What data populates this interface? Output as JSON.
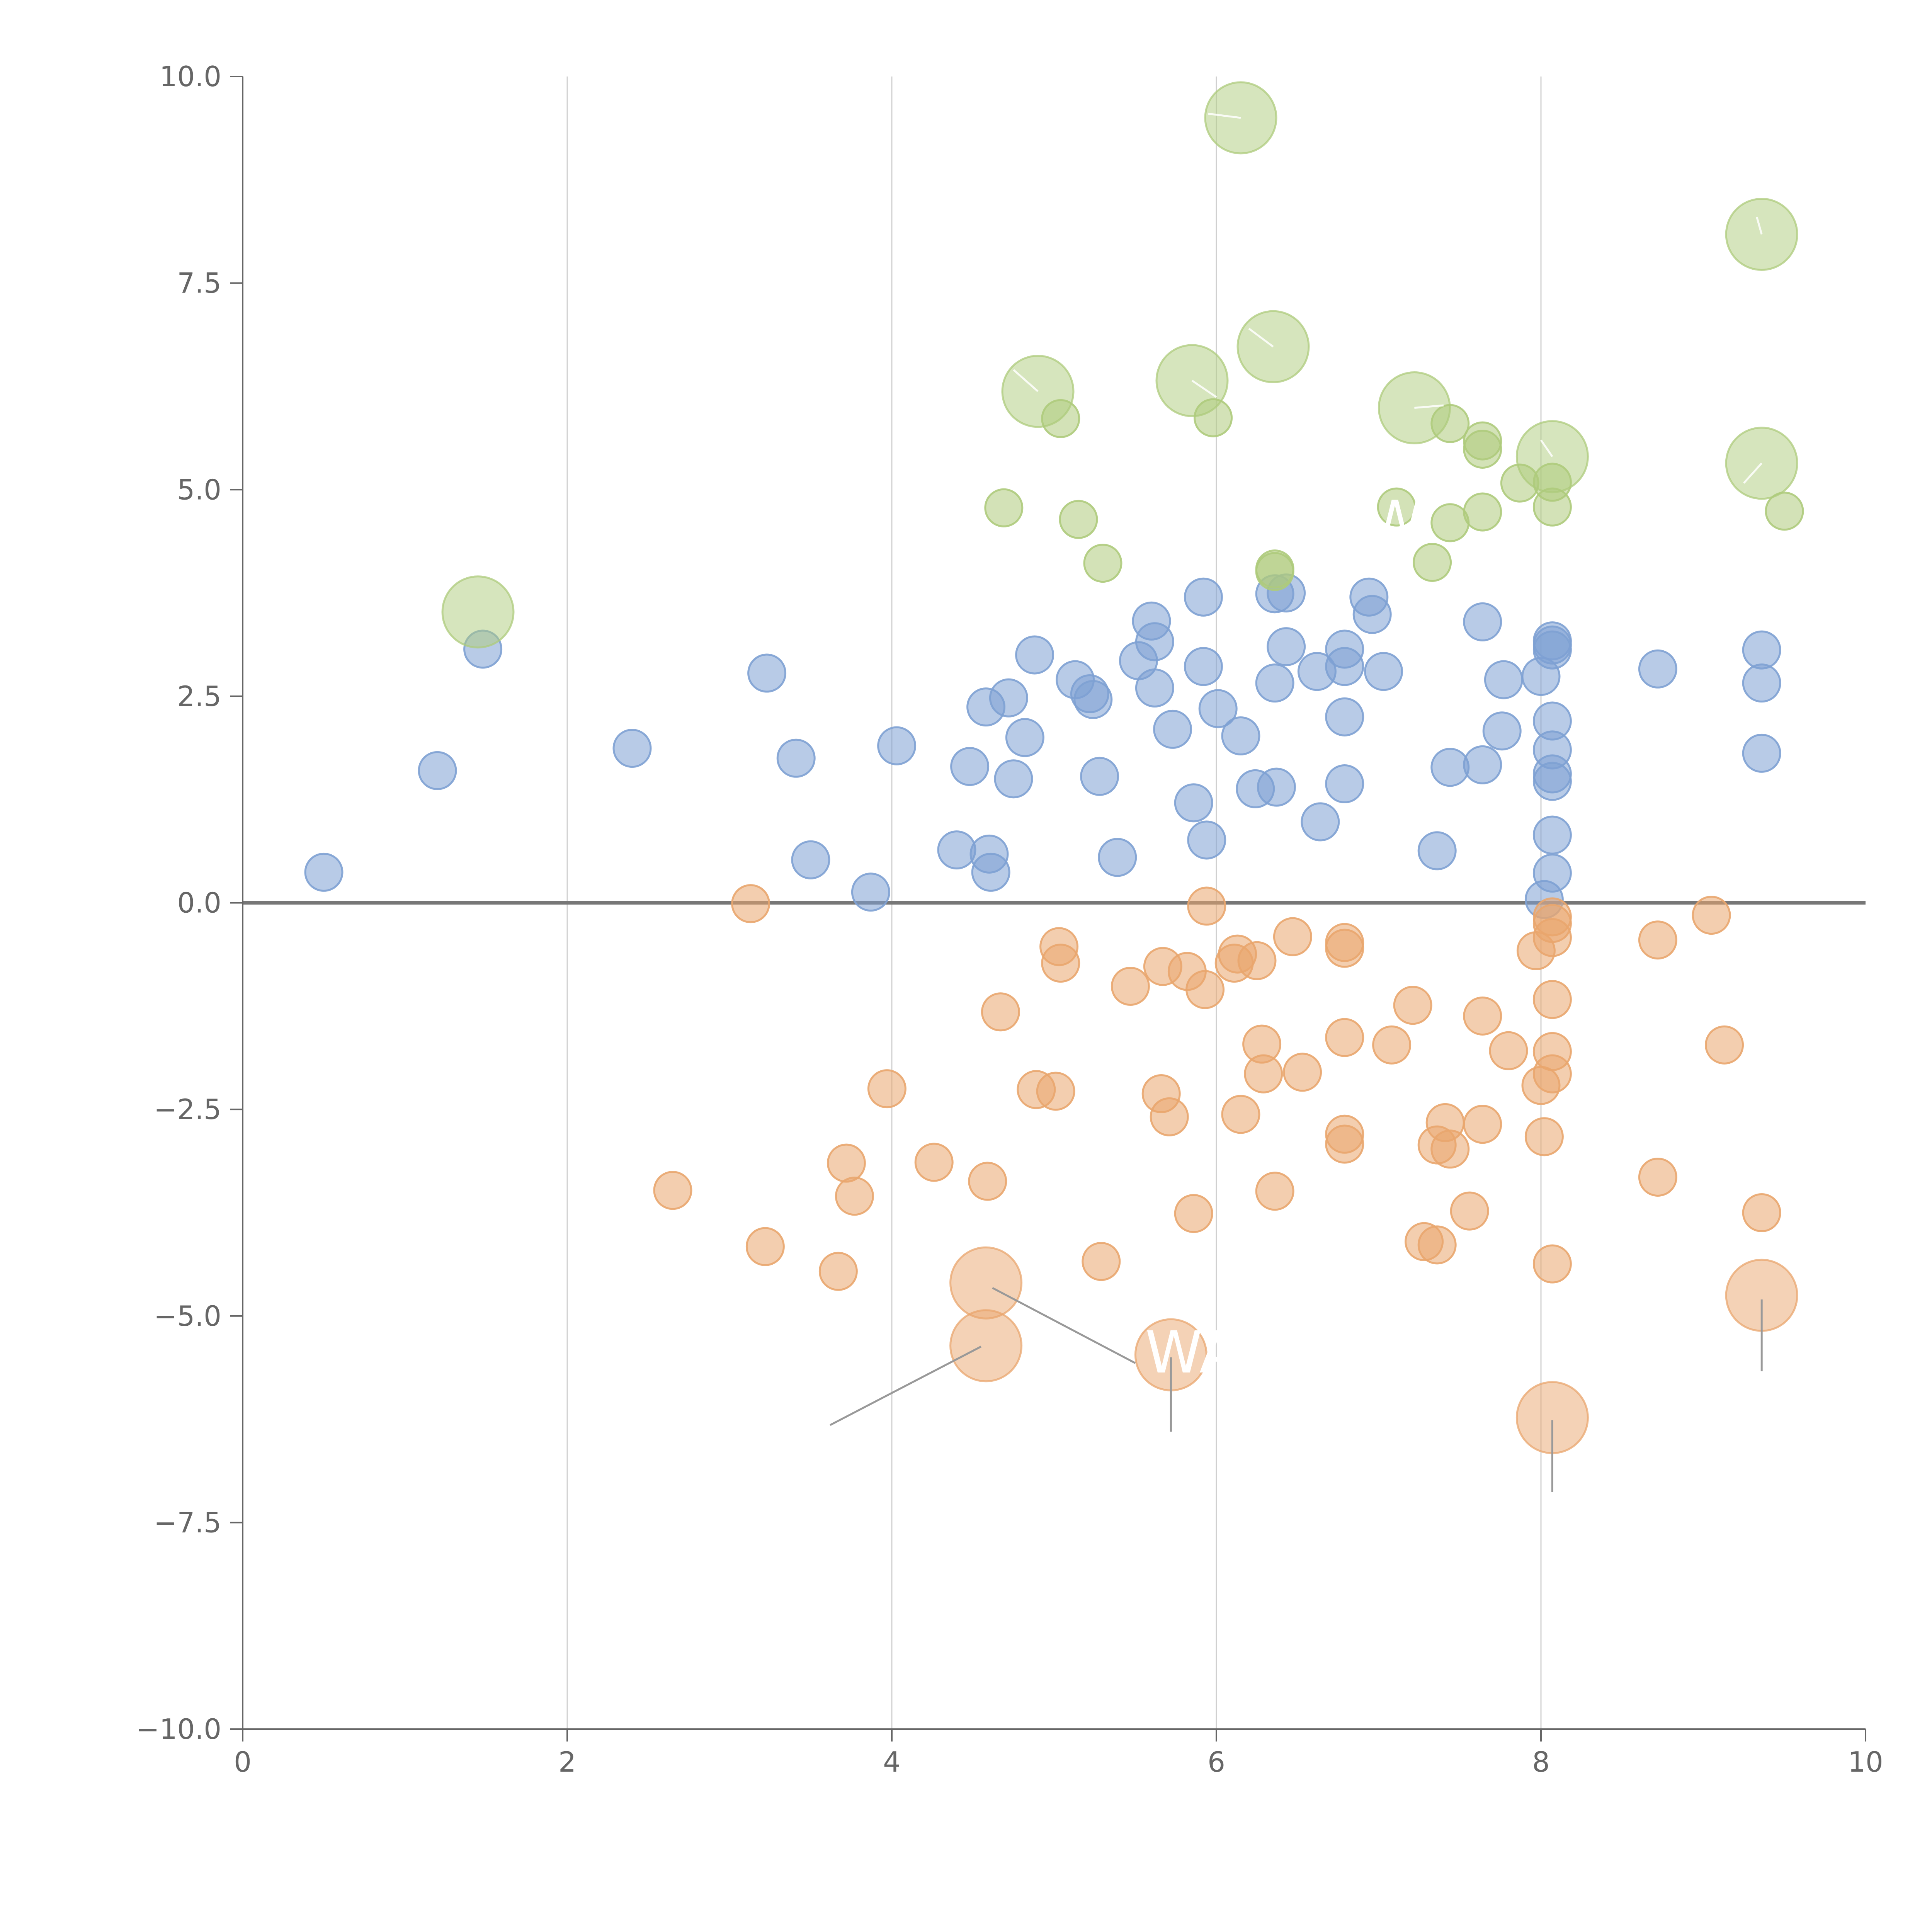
{
  "chart_data": {
    "type": "scatter",
    "title": "",
    "xlabel": "",
    "ylabel": "",
    "xlim": [
      0,
      10
    ],
    "ylim": [
      -10,
      10
    ],
    "x_ticks": [
      0,
      2,
      4,
      6,
      8,
      10
    ],
    "x_tick_labels": [
      "0",
      "2",
      "4",
      "6",
      "8",
      "10"
    ],
    "y_ticks": [
      -10,
      -7.5,
      -5,
      -2.5,
      0,
      2.5,
      5,
      7.5,
      10
    ],
    "y_tick_labels": [
      "−10.0",
      "−7.5",
      "−5.0",
      "−2.5",
      "0.0",
      "2.5",
      "5.0",
      "7.5",
      "10.0"
    ],
    "grid": {
      "vertical": true,
      "horizontal": false
    },
    "zero_line": true,
    "colors": {
      "blue": "#7ea1d3",
      "orange": "#e9a66e",
      "green": "#aecb7c",
      "axis": "#666666",
      "grid": "#d0d0d0"
    },
    "annotations": [
      {
        "text": "W",
        "x": 7.1,
        "y": 4.6,
        "color": "#ffffff"
      },
      {
        "text": "WA",
        "x": 5.85,
        "y": -5.45,
        "color": "#ffffff"
      }
    ],
    "series": [
      {
        "name": "blue",
        "color": "#7ea1d3",
        "points": [
          [
            0.5,
            0.37
          ],
          [
            1.2,
            1.6
          ],
          [
            1.48,
            3.07
          ],
          [
            2.4,
            1.87
          ],
          [
            3.23,
            2.78
          ],
          [
            3.41,
            1.75
          ],
          [
            3.5,
            0.52
          ],
          [
            3.87,
            0.13
          ],
          [
            4.03,
            1.9
          ],
          [
            4.4,
            0.64
          ],
          [
            4.48,
            1.65
          ],
          [
            4.58,
            2.37
          ],
          [
            4.6,
            0.59
          ],
          [
            4.61,
            0.37
          ],
          [
            4.72,
            2.48
          ],
          [
            4.75,
            1.5
          ],
          [
            4.82,
            2.0
          ],
          [
            4.88,
            3.0
          ],
          [
            5.13,
            2.7
          ],
          [
            5.22,
            2.53
          ],
          [
            5.24,
            2.46
          ],
          [
            5.28,
            1.53
          ],
          [
            5.39,
            0.55
          ],
          [
            5.52,
            2.93
          ],
          [
            5.6,
            3.41
          ],
          [
            5.62,
            3.16
          ],
          [
            5.62,
            2.6
          ],
          [
            5.73,
            2.1
          ],
          [
            5.86,
            1.21
          ],
          [
            5.92,
            3.7
          ],
          [
            5.92,
            2.86
          ],
          [
            5.94,
            0.76
          ],
          [
            6.01,
            2.35
          ],
          [
            6.15,
            2.02
          ],
          [
            6.24,
            1.38
          ],
          [
            6.36,
            3.74
          ],
          [
            6.36,
            2.66
          ],
          [
            6.37,
            1.4
          ],
          [
            6.43,
            3.75
          ],
          [
            6.43,
            3.1
          ],
          [
            6.62,
            2.8
          ],
          [
            6.64,
            0.98
          ],
          [
            6.79,
            3.07
          ],
          [
            6.79,
            2.86
          ],
          [
            6.79,
            2.25
          ],
          [
            6.79,
            1.44
          ],
          [
            6.94,
            3.7
          ],
          [
            6.96,
            3.49
          ],
          [
            7.03,
            2.8
          ],
          [
            7.36,
            0.63
          ],
          [
            7.44,
            1.64
          ],
          [
            7.64,
            3.4
          ],
          [
            7.64,
            1.67
          ],
          [
            7.76,
            2.08
          ],
          [
            7.77,
            2.7
          ],
          [
            8.0,
            2.74
          ],
          [
            8.02,
            0.04
          ],
          [
            8.07,
            3.17
          ],
          [
            8.07,
            3.12
          ],
          [
            8.07,
            3.06
          ],
          [
            8.07,
            2.2
          ],
          [
            8.07,
            1.85
          ],
          [
            8.07,
            1.56
          ],
          [
            8.07,
            1.47
          ],
          [
            8.07,
            0.82
          ],
          [
            8.07,
            0.36
          ],
          [
            8.72,
            2.83
          ],
          [
            9.36,
            3.06
          ],
          [
            9.36,
            2.66
          ],
          [
            9.36,
            1.81
          ]
        ]
      },
      {
        "name": "orange",
        "color": "#e9a66e",
        "points": [
          [
            2.65,
            -3.48
          ],
          [
            3.13,
            -0.01
          ],
          [
            3.22,
            -4.16
          ],
          [
            3.67,
            -4.46
          ],
          [
            3.72,
            -3.15
          ],
          [
            3.77,
            -3.55
          ],
          [
            3.97,
            -2.25
          ],
          [
            4.26,
            -3.14
          ],
          [
            4.59,
            -3.37
          ],
          [
            4.67,
            -1.32
          ],
          [
            4.89,
            -2.26
          ],
          [
            5.01,
            -2.28
          ],
          [
            5.03,
            -0.53
          ],
          [
            5.04,
            -0.73
          ],
          [
            5.29,
            -4.34
          ],
          [
            5.47,
            -1.01
          ],
          [
            5.66,
            -2.31
          ],
          [
            5.67,
            -0.77
          ],
          [
            5.71,
            -2.59
          ],
          [
            5.82,
            -0.83
          ],
          [
            5.86,
            -3.76
          ],
          [
            5.93,
            -1.05
          ],
          [
            5.94,
            -0.04
          ],
          [
            6.11,
            -0.73
          ],
          [
            6.13,
            -0.62
          ],
          [
            6.15,
            -2.56
          ],
          [
            6.25,
            -0.7
          ],
          [
            6.28,
            -1.71
          ],
          [
            6.29,
            -2.07
          ],
          [
            6.36,
            -3.49
          ],
          [
            6.47,
            -0.41
          ],
          [
            6.53,
            -2.05
          ],
          [
            6.79,
            -0.48
          ],
          [
            6.79,
            -0.55
          ],
          [
            6.79,
            -1.63
          ],
          [
            6.79,
            -2.8
          ],
          [
            6.79,
            -2.92
          ],
          [
            7.08,
            -1.72
          ],
          [
            7.21,
            -1.24
          ],
          [
            7.28,
            -4.1
          ],
          [
            7.36,
            -4.14
          ],
          [
            7.36,
            -2.93
          ],
          [
            7.41,
            -2.66
          ],
          [
            7.44,
            -2.98
          ],
          [
            7.56,
            -3.73
          ],
          [
            7.64,
            -1.37
          ],
          [
            7.64,
            -2.68
          ],
          [
            7.8,
            -1.79
          ],
          [
            7.97,
            -0.58
          ],
          [
            8.0,
            -2.21
          ],
          [
            8.02,
            -2.83
          ],
          [
            8.07,
            -0.17
          ],
          [
            8.07,
            -0.25
          ],
          [
            8.07,
            -0.42
          ],
          [
            8.07,
            -1.17
          ],
          [
            8.07,
            -1.8
          ],
          [
            8.07,
            -2.07
          ],
          [
            8.07,
            -4.37
          ],
          [
            8.72,
            -0.45
          ],
          [
            8.72,
            -3.32
          ],
          [
            9.05,
            -0.15
          ],
          [
            9.13,
            -1.72
          ],
          [
            9.36,
            -3.75
          ]
        ]
      },
      {
        "name": "green",
        "color": "#aecb7c",
        "points": [
          [
            4.69,
            4.78
          ],
          [
            5.04,
            5.86
          ],
          [
            5.15,
            4.64
          ],
          [
            5.3,
            4.11
          ],
          [
            5.98,
            5.87
          ],
          [
            6.36,
            4.04
          ],
          [
            6.36,
            4.01
          ],
          [
            7.11,
            4.79
          ],
          [
            7.33,
            4.12
          ],
          [
            7.44,
            5.8
          ],
          [
            7.44,
            4.6
          ],
          [
            7.64,
            5.59
          ],
          [
            7.64,
            5.49
          ],
          [
            7.64,
            4.73
          ],
          [
            7.87,
            5.08
          ],
          [
            8.07,
            5.09
          ],
          [
            8.07,
            4.79
          ],
          [
            9.5,
            4.74
          ]
        ]
      }
    ],
    "large_points": [
      {
        "series": "green",
        "x": 1.45,
        "y": 3.52
      },
      {
        "series": "green",
        "x": 4.9,
        "y": 6.19
      },
      {
        "series": "green",
        "x": 5.85,
        "y": 6.32
      },
      {
        "series": "green",
        "x": 6.15,
        "y": 9.5
      },
      {
        "series": "green",
        "x": 6.35,
        "y": 6.73
      },
      {
        "series": "green",
        "x": 7.22,
        "y": 5.99
      },
      {
        "series": "green",
        "x": 8.07,
        "y": 5.4
      },
      {
        "series": "green",
        "x": 9.36,
        "y": 8.09
      },
      {
        "series": "green",
        "x": 9.36,
        "y": 5.32
      },
      {
        "series": "orange",
        "x": 4.58,
        "y": -4.6
      },
      {
        "series": "orange",
        "x": 4.58,
        "y": -5.36
      },
      {
        "series": "orange",
        "x": 5.72,
        "y": -5.47
      },
      {
        "series": "orange",
        "x": 8.07,
        "y": -6.23
      },
      {
        "series": "orange",
        "x": 9.36,
        "y": -4.75
      }
    ],
    "leader_lines": [
      {
        "from": [
          4.55,
          -5.37
        ],
        "to": [
          3.62,
          -6.32
        ],
        "color": "#999999"
      },
      {
        "from": [
          4.62,
          -4.66
        ],
        "to": [
          5.5,
          -5.57
        ],
        "color": "#999999"
      },
      {
        "from": [
          5.72,
          -5.5
        ],
        "to": [
          5.72,
          -6.4
        ],
        "color": "#999999"
      },
      {
        "from": [
          8.07,
          -6.26
        ],
        "to": [
          8.07,
          -7.13
        ],
        "color": "#999999"
      },
      {
        "from": [
          9.36,
          -4.8
        ],
        "to": [
          9.36,
          -5.67
        ],
        "color": "#999999"
      },
      {
        "from": [
          5.85,
          6.32
        ],
        "to": [
          6.0,
          6.12
        ],
        "color": "#ffffff"
      },
      {
        "from": [
          4.9,
          6.19
        ],
        "to": [
          4.75,
          6.45
        ],
        "color": "#ffffff"
      },
      {
        "from": [
          6.35,
          6.73
        ],
        "to": [
          6.2,
          6.95
        ],
        "color": "#ffffff"
      },
      {
        "from": [
          6.15,
          9.5
        ],
        "to": [
          5.95,
          9.55
        ],
        "color": "#ffffff"
      },
      {
        "from": [
          7.22,
          5.99
        ],
        "to": [
          7.4,
          6.02
        ],
        "color": "#ffffff"
      },
      {
        "from": [
          8.07,
          5.4
        ],
        "to": [
          8.0,
          5.6
        ],
        "color": "#ffffff"
      },
      {
        "from": [
          9.36,
          8.09
        ],
        "to": [
          9.33,
          8.3
        ],
        "color": "#ffffff"
      },
      {
        "from": [
          9.36,
          5.32
        ],
        "to": [
          9.25,
          5.08
        ],
        "color": "#ffffff"
      }
    ]
  }
}
